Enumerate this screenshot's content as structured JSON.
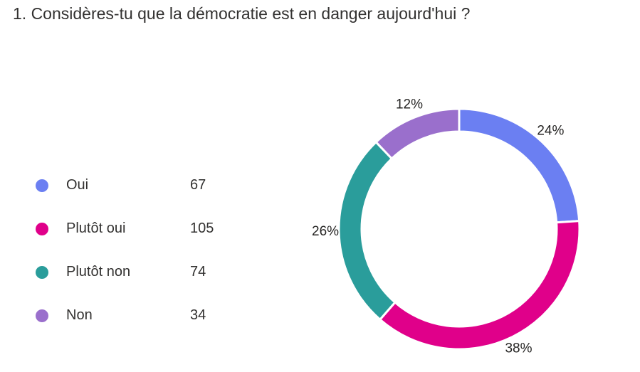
{
  "question": "1. Considères-tu que la démocratie est en danger aujourd'hui ?",
  "chart_data": {
    "type": "pie",
    "style": "donut",
    "categories": [
      "Oui",
      "Plutôt oui",
      "Plutôt non",
      "Non"
    ],
    "values": [
      67,
      105,
      74,
      34
    ],
    "percent_labels": [
      "24%",
      "38%",
      "26%",
      "12%"
    ],
    "colors": [
      "#6b7ff2",
      "#e0008a",
      "#2a9d9b",
      "#9a6fcc"
    ],
    "legend_position": "left"
  }
}
